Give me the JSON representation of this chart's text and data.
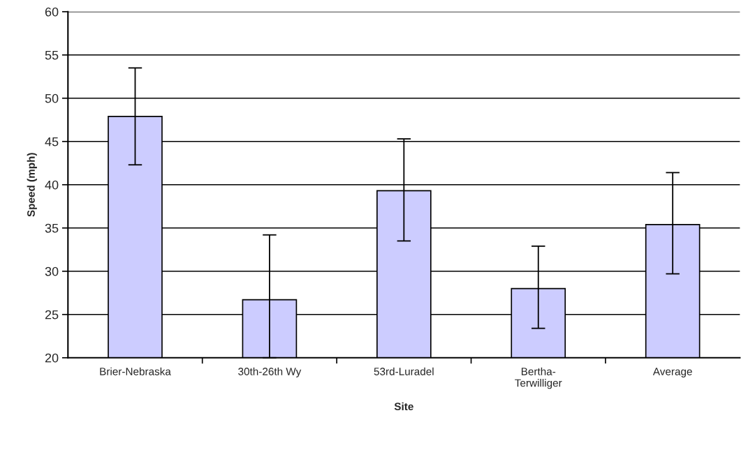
{
  "chart_data": {
    "type": "bar",
    "xlabel": "Site",
    "ylabel": "Speed (mph)",
    "categories": [
      "Brier-Nebraska",
      "30th-26th Wy",
      "53rd-Luradel",
      "Bertha-\nTerwilliger",
      "Average"
    ],
    "values": [
      47.9,
      26.7,
      39.3,
      28.0,
      35.4
    ],
    "errors": [
      [
        42.3,
        53.5
      ],
      [
        20,
        34.2
      ],
      [
        33.5,
        45.3
      ],
      [
        23.4,
        32.9
      ],
      [
        29.7,
        41.4
      ]
    ],
    "color": "#ccccff",
    "ylim": [
      20,
      60
    ],
    "yticks": [
      20,
      25,
      30,
      35,
      40,
      45,
      50,
      55,
      60
    ],
    "grid": "y",
    "legend": false
  }
}
